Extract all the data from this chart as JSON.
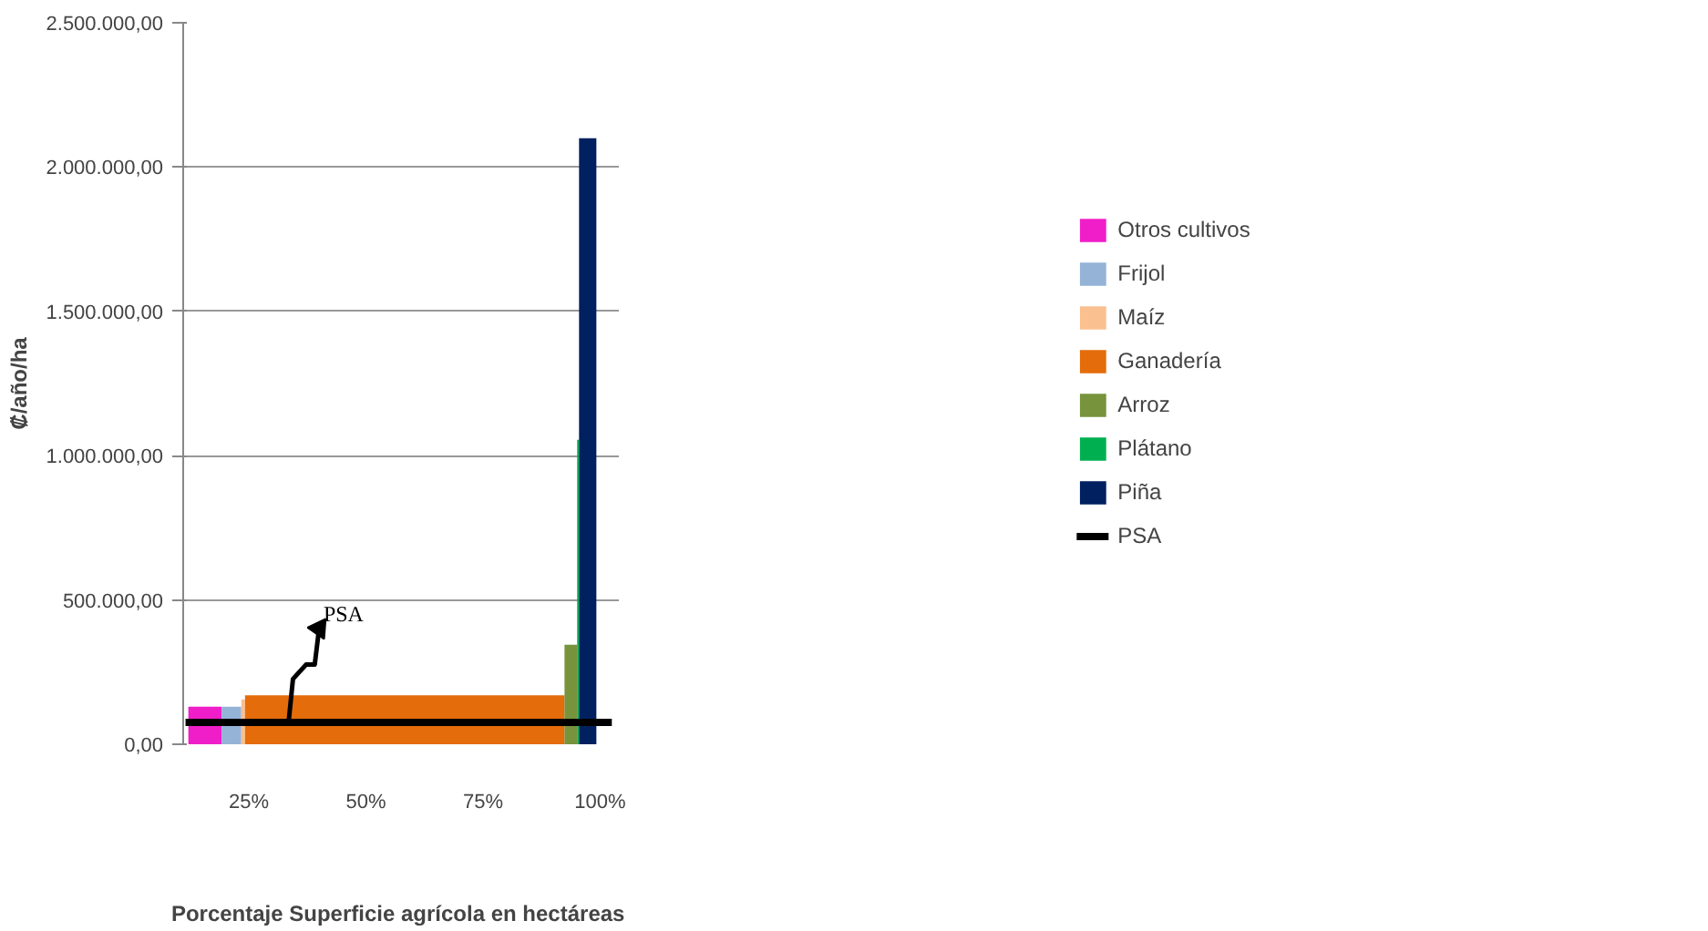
{
  "chart_data": {
    "type": "area",
    "xlabel": "Porcentaje Superficie agrícola  en hectáreas",
    "ylabel": "₡/año/ha",
    "series": [
      {
        "name": "Otros cultivos",
        "color": "#f01ec8",
        "x": [
          12.1,
          19.2
        ],
        "values": [
          130000,
          130000
        ]
      },
      {
        "name": "Frijol",
        "color": "#95b3d7",
        "x": [
          19.2,
          23.4
        ],
        "values": [
          130000,
          130000
        ]
      },
      {
        "name": "Maíz",
        "color": "#fac090",
        "x": [
          23.4,
          24.2
        ],
        "values": [
          155000,
          155000
        ]
      },
      {
        "name": "Ganadería",
        "color": "#e46c0a",
        "x": [
          24.2,
          92.4
        ],
        "values": [
          170000,
          170000
        ]
      },
      {
        "name": "Arroz",
        "color": "#77933c",
        "x": [
          92.4,
          95.1
        ],
        "values": [
          345000,
          345000
        ]
      },
      {
        "name": "Plátano",
        "color": "#00b050",
        "x": [
          95.1,
          95.5
        ],
        "values": [
          1055000,
          1055000
        ]
      },
      {
        "name": "Piña",
        "color": "#002060",
        "x": [
          95.5,
          99.2
        ],
        "values": [
          2100000,
          2100000
        ]
      }
    ],
    "ref_lines": [
      {
        "axis": "y",
        "value": 76000,
        "label": "PSA",
        "color": "#000000"
      }
    ],
    "annotations": [
      {
        "text": "PSA",
        "x": 33.5,
        "y": 76000
      }
    ],
    "xlim": [
      11,
      104
    ],
    "xticks": [
      {
        "value": 25,
        "label": "25%"
      },
      {
        "value": 50,
        "label": "50%"
      },
      {
        "value": 75,
        "label": "75%"
      },
      {
        "value": 100,
        "label": "100%"
      }
    ],
    "ylim": [
      0,
      2500000
    ],
    "yticks": [
      {
        "value": 0,
        "label": "0,00"
      },
      {
        "value": 500000,
        "label": "500.000,00"
      },
      {
        "value": 1000000,
        "label": "1.000.000,00"
      },
      {
        "value": 1500000,
        "label": "1.500.000,00"
      },
      {
        "value": 2000000,
        "label": "2.000.000,00"
      },
      {
        "value": 2500000,
        "label": "2.500.000,00"
      }
    ],
    "grid": "y",
    "legend": "right"
  }
}
